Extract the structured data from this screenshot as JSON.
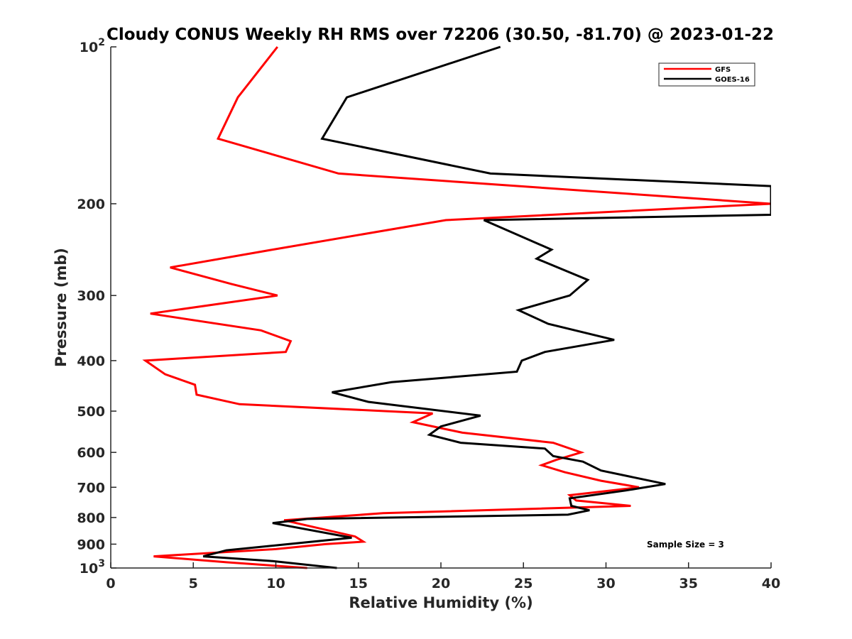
{
  "chart_data": {
    "type": "line",
    "title": "Cloudy CONUS Weekly RH RMS over 72206 (30.50, -81.70) @ 2023-01-22",
    "xlabel": "Relative Humidity (%)",
    "ylabel": "Pressure (mb)",
    "xlim": [
      0,
      40
    ],
    "ylim": [
      100,
      1000
    ],
    "yscale": "log",
    "yreversed": true,
    "grid": false,
    "legend_position": "top-right",
    "x_ticks": [
      0,
      5,
      10,
      15,
      20,
      25,
      30,
      35,
      40
    ],
    "x_tick_labels": [
      "0",
      "5",
      "10",
      "15",
      "20",
      "25",
      "30",
      "35",
      "40"
    ],
    "y_ticks": [
      100,
      200,
      300,
      400,
      500,
      600,
      700,
      800,
      900,
      1000
    ],
    "y_tick_labels": [
      {
        "base": "10",
        "exp": "2"
      },
      {
        "base": "200",
        "exp": ""
      },
      {
        "base": "300",
        "exp": ""
      },
      {
        "base": "400",
        "exp": ""
      },
      {
        "base": "500",
        "exp": ""
      },
      {
        "base": "600",
        "exp": ""
      },
      {
        "base": "700",
        "exp": ""
      },
      {
        "base": "800",
        "exp": ""
      },
      {
        "base": "900",
        "exp": ""
      },
      {
        "base": "10",
        "exp": "3"
      }
    ],
    "annotation": "Sample Size = 3",
    "series": [
      {
        "name": "GFS",
        "color": "#ff0000",
        "points": [
          [
            10.1,
            100
          ],
          [
            7.7,
            125
          ],
          [
            6.5,
            150
          ],
          [
            13.8,
            175
          ],
          [
            40.0,
            200
          ],
          [
            20.3,
            215
          ],
          [
            9.8,
            245
          ],
          [
            3.6,
            265
          ],
          [
            7.3,
            285
          ],
          [
            10.1,
            300
          ],
          [
            2.4,
            325
          ],
          [
            9.1,
            350
          ],
          [
            10.9,
            367
          ],
          [
            10.6,
            385
          ],
          [
            2.1,
            400
          ],
          [
            3.3,
            425
          ],
          [
            5.1,
            445
          ],
          [
            5.2,
            465
          ],
          [
            7.8,
            485
          ],
          [
            19.5,
            505
          ],
          [
            18.3,
            525
          ],
          [
            21.3,
            550
          ],
          [
            26.8,
            575
          ],
          [
            28.5,
            600
          ],
          [
            27.0,
            620
          ],
          [
            26.1,
            635
          ],
          [
            27.5,
            655
          ],
          [
            29.7,
            680
          ],
          [
            32.0,
            700
          ],
          [
            27.8,
            725
          ],
          [
            28.2,
            742
          ],
          [
            31.5,
            760
          ],
          [
            16.5,
            785
          ],
          [
            10.5,
            810
          ],
          [
            14.8,
            870
          ],
          [
            15.3,
            890
          ],
          [
            13.0,
            900
          ],
          [
            10.0,
            920
          ],
          [
            2.6,
            950
          ],
          [
            7.0,
            975
          ],
          [
            11.9,
            1000
          ]
        ]
      },
      {
        "name": "GOES-16",
        "color": "#000000",
        "points": [
          [
            23.6,
            100
          ],
          [
            14.3,
            125
          ],
          [
            12.8,
            150
          ],
          [
            23.0,
            175
          ],
          [
            40.0,
            185
          ],
          [
            40.0,
            210
          ],
          [
            22.6,
            215
          ],
          [
            26.7,
            245
          ],
          [
            25.8,
            255
          ],
          [
            28.9,
            280
          ],
          [
            27.8,
            300
          ],
          [
            24.7,
            320
          ],
          [
            26.5,
            340
          ],
          [
            30.5,
            365
          ],
          [
            26.3,
            385
          ],
          [
            24.9,
            400
          ],
          [
            24.6,
            420
          ],
          [
            17.0,
            440
          ],
          [
            13.4,
            460
          ],
          [
            15.6,
            480
          ],
          [
            22.4,
            510
          ],
          [
            20.0,
            535
          ],
          [
            19.3,
            555
          ],
          [
            21.2,
            575
          ],
          [
            26.3,
            590
          ],
          [
            26.8,
            610
          ],
          [
            28.6,
            625
          ],
          [
            29.7,
            650
          ],
          [
            33.6,
            690
          ],
          [
            31.2,
            710
          ],
          [
            27.8,
            735
          ],
          [
            27.9,
            760
          ],
          [
            29.0,
            775
          ],
          [
            27.7,
            790
          ],
          [
            11.9,
            805
          ],
          [
            9.8,
            820
          ],
          [
            14.6,
            875
          ],
          [
            11.5,
            895
          ],
          [
            7.0,
            925
          ],
          [
            5.6,
            950
          ],
          [
            9.8,
            970
          ],
          [
            13.7,
            1000
          ]
        ]
      }
    ]
  }
}
